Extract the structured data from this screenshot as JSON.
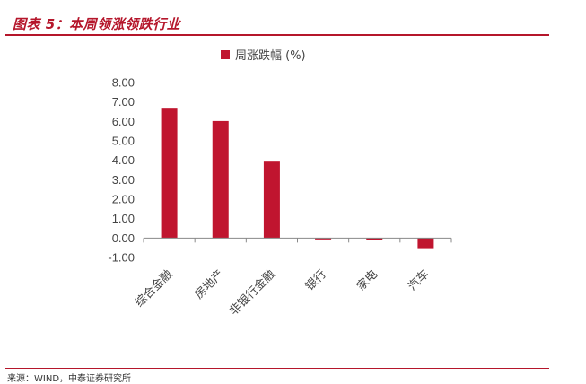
{
  "figure": {
    "title": "图表 5：本周领涨领跌行业",
    "source": "来源：WIND，中泰证券研究所"
  },
  "chart_data": {
    "type": "bar",
    "categories": [
      "综合金融",
      "房地产",
      "非银行金融",
      "银行",
      "家电",
      "汽车"
    ],
    "series": [
      {
        "name": "周涨跌幅 (%)",
        "values": [
          6.7,
          6.02,
          3.93,
          -0.07,
          -0.11,
          -0.52
        ],
        "color": "#c0152f"
      }
    ],
    "ylim": [
      -1.0,
      8.0
    ],
    "yticks": [
      "8.00",
      "7.00",
      "6.00",
      "5.00",
      "4.00",
      "3.00",
      "2.00",
      "1.00",
      "0.00",
      "-1.00"
    ],
    "grid": false,
    "legend": "top-center"
  }
}
